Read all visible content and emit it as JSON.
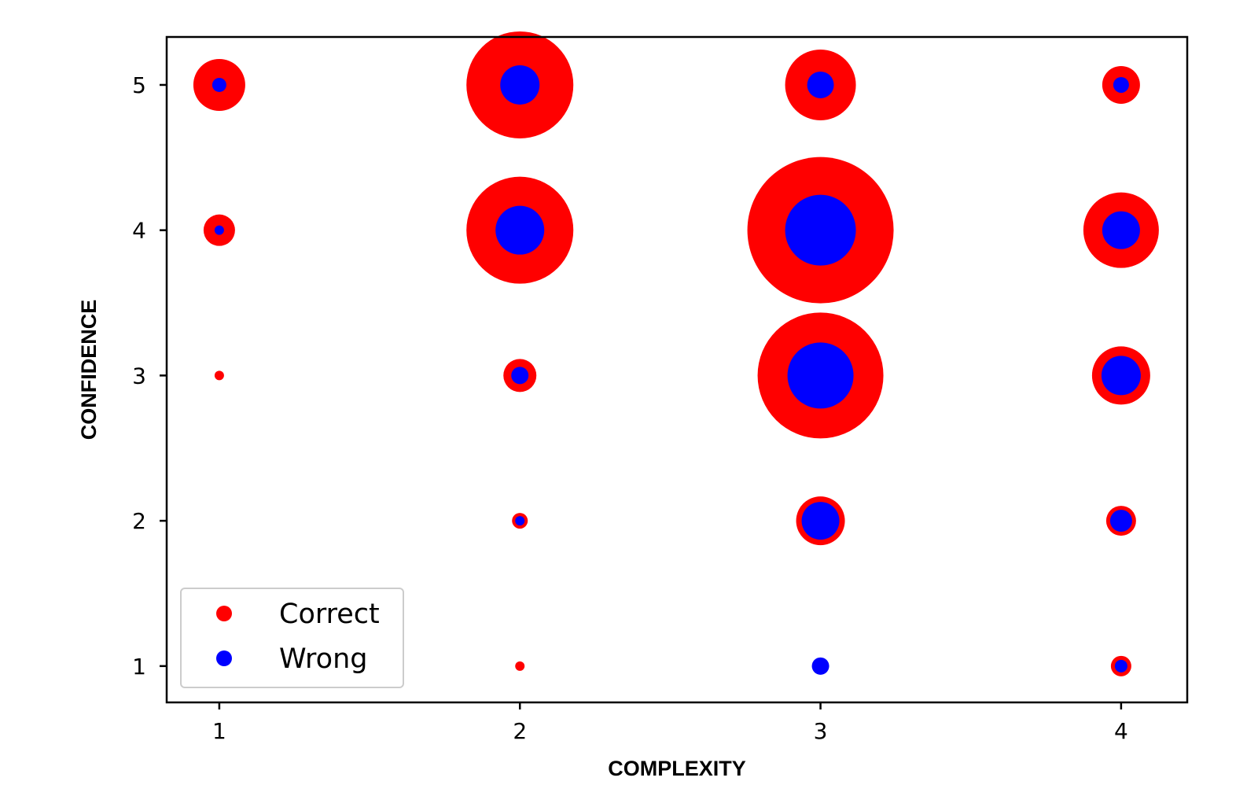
{
  "chart_data": {
    "type": "scatter",
    "subtype": "bubble",
    "title": "",
    "xlabel": "COMPLEXITY",
    "ylabel": "CONFIDENCE",
    "xlim": [
      0.825,
      4.22
    ],
    "ylim": [
      0.75,
      5.33
    ],
    "xticks": [
      1,
      2,
      3,
      4
    ],
    "yticks": [
      1,
      2,
      3,
      4,
      5
    ],
    "grid": false,
    "legend": {
      "position": "bottom-left"
    },
    "series": [
      {
        "name": "Correct",
        "color": "#ff0000",
        "points": [
          {
            "x": 1,
            "y": 5,
            "size": 33
          },
          {
            "x": 1,
            "y": 4,
            "size": 20
          },
          {
            "x": 1,
            "y": 3,
            "size": 6
          },
          {
            "x": 2,
            "y": 5,
            "size": 68
          },
          {
            "x": 2,
            "y": 4,
            "size": 68
          },
          {
            "x": 2,
            "y": 3,
            "size": 21
          },
          {
            "x": 2,
            "y": 2,
            "size": 10
          },
          {
            "x": 2,
            "y": 1,
            "size": 6
          },
          {
            "x": 3,
            "y": 5,
            "size": 45
          },
          {
            "x": 3,
            "y": 4,
            "size": 93
          },
          {
            "x": 3,
            "y": 3,
            "size": 80
          },
          {
            "x": 3,
            "y": 2,
            "size": 31
          },
          {
            "x": 4,
            "y": 5,
            "size": 24
          },
          {
            "x": 4,
            "y": 4,
            "size": 48
          },
          {
            "x": 4,
            "y": 3,
            "size": 37
          },
          {
            "x": 4,
            "y": 2,
            "size": 19
          },
          {
            "x": 4,
            "y": 1,
            "size": 13
          }
        ]
      },
      {
        "name": "Wrong",
        "color": "#0000ff",
        "points": [
          {
            "x": 1,
            "y": 5,
            "size": 9
          },
          {
            "x": 1,
            "y": 4,
            "size": 6
          },
          {
            "x": 2,
            "y": 5,
            "size": 25
          },
          {
            "x": 2,
            "y": 4,
            "size": 31
          },
          {
            "x": 2,
            "y": 3,
            "size": 11
          },
          {
            "x": 2,
            "y": 2,
            "size": 6
          },
          {
            "x": 3,
            "y": 5,
            "size": 17
          },
          {
            "x": 3,
            "y": 4,
            "size": 45
          },
          {
            "x": 3,
            "y": 3,
            "size": 42
          },
          {
            "x": 3,
            "y": 2,
            "size": 24
          },
          {
            "x": 3,
            "y": 1,
            "size": 11
          },
          {
            "x": 4,
            "y": 5,
            "size": 10
          },
          {
            "x": 4,
            "y": 4,
            "size": 24
          },
          {
            "x": 4,
            "y": 3,
            "size": 25
          },
          {
            "x": 4,
            "y": 2,
            "size": 14
          },
          {
            "x": 4,
            "y": 1,
            "size": 8
          }
        ]
      }
    ]
  }
}
